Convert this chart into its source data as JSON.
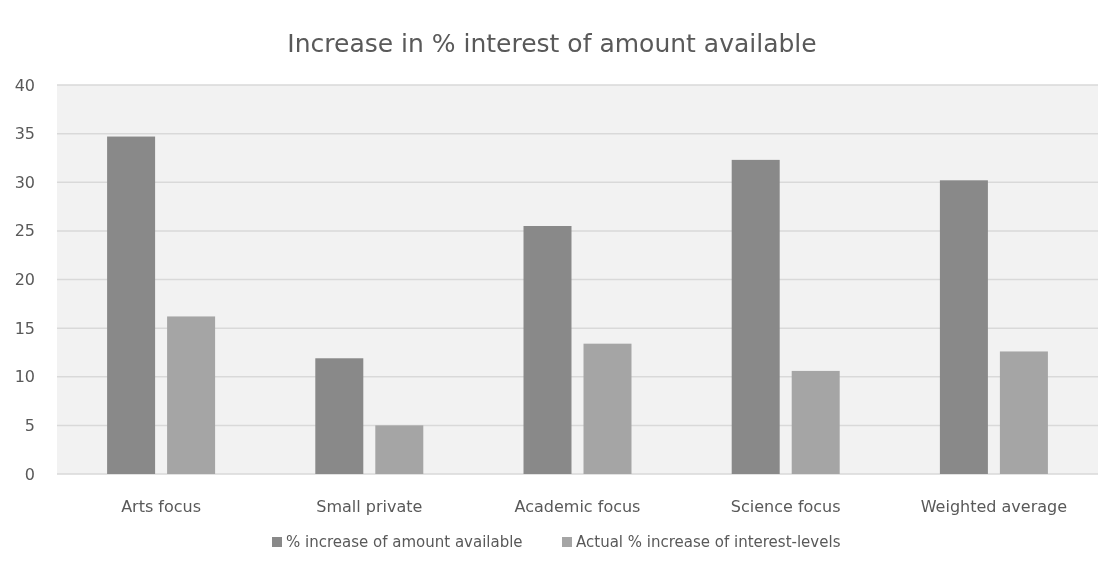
{
  "chart_data": {
    "type": "bar",
    "title": "Increase in % interest of amount available",
    "categories": [
      "Arts focus",
      "Small private",
      "Academic focus",
      "Science focus",
      "Weighted average"
    ],
    "series": [
      {
        "name": "% increase of amount available",
        "color": "#898989",
        "values": [
          34.7,
          11.9,
          25.5,
          32.3,
          30.2
        ]
      },
      {
        "name": "Actual % increase of interest-levels",
        "color": "#a5a5a5",
        "values": [
          16.2,
          5.0,
          13.4,
          10.6,
          12.6
        ]
      }
    ],
    "ylim": [
      0,
      40
    ],
    "yticks": [
      0,
      5,
      10,
      15,
      20,
      25,
      30,
      35,
      40
    ],
    "grid": "y",
    "legend": "bottom"
  }
}
